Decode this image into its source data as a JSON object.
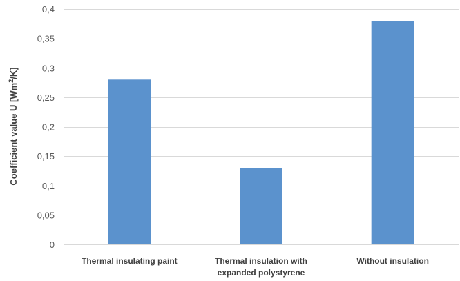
{
  "chart_data": {
    "type": "bar",
    "categories": [
      [
        "Thermal insulating paint"
      ],
      [
        "Thermal insulation with",
        "expanded polystyrene"
      ],
      [
        "Without insulation"
      ]
    ],
    "values": [
      0.28,
      0.13,
      0.38
    ],
    "ylabel": {
      "prefix": "Coefficient value U [Wm",
      "superscript": "2",
      "suffix": "/K]"
    },
    "ylim": [
      0,
      0.4
    ],
    "yticks": [
      0,
      0.05,
      0.1,
      0.15,
      0.2,
      0.25,
      0.3,
      0.35,
      0.4
    ],
    "ytick_labels": [
      "0",
      "0,05",
      "0,1",
      "0,15",
      "0,2",
      "0,25",
      "0,3",
      "0,35",
      "0,4"
    ],
    "grid": true,
    "legend": false,
    "bar_color": "#5b92cd",
    "grid_color": "#d9d9d9"
  }
}
